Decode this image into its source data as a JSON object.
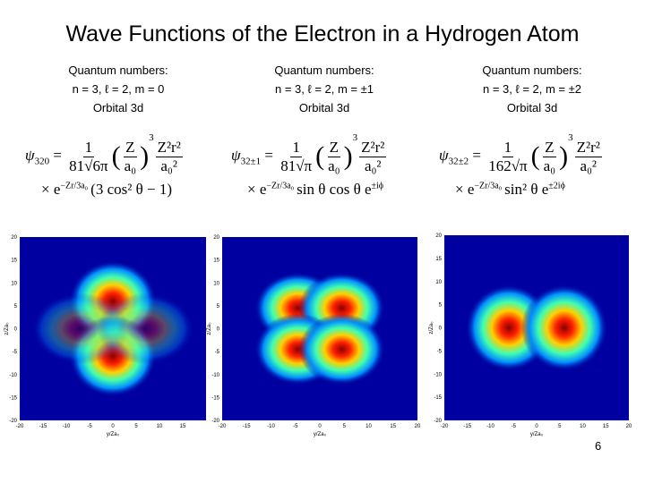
{
  "title": "Wave Functions of the Electron in a Hydrogen Atom",
  "page_number": "6",
  "panels": [
    {
      "header": [
        "Quantum numbers:",
        "n = 3, ℓ = 2, m = 0",
        "Orbital 3d"
      ],
      "equation": {
        "lhs": "ψ",
        "lhs_sub": "320",
        "coef_num": "1",
        "coef_den": "81√6π",
        "ratio_num": "Z",
        "ratio_den": "a₀",
        "power": "3",
        "r_num": "Z²r²",
        "r_den": "a₀²",
        "times": "× e",
        "exp": "−Zr/3a₀",
        "angular": "(3 cos² θ − 1)"
      },
      "plot": {
        "xticks": [
          -20,
          -15,
          -10,
          -5,
          0,
          5,
          10,
          15
        ],
        "yticks": [
          20,
          15,
          10,
          5,
          0,
          -5,
          -10,
          -15,
          -20
        ],
        "xlabel": "y/Za₀",
        "ylabel": "z/Za₀"
      }
    },
    {
      "header": [
        "Quantum numbers:",
        "n = 3, ℓ = 2, m = ±1",
        "Orbital 3d"
      ],
      "equation": {
        "lhs": "ψ",
        "lhs_sub": "32±1",
        "coef_num": "1",
        "coef_den": "81√π",
        "ratio_num": "Z",
        "ratio_den": "a₀",
        "power": "3",
        "r_num": "Z²r²",
        "r_den": "a₀²",
        "times": "× e",
        "exp": "−Zr/3a₀",
        "angular": "sin θ cos θ e",
        "angular_sup": "±iϕ"
      },
      "plot": {
        "xticks": [
          -20,
          -15,
          -10,
          -5,
          0,
          5,
          10,
          15,
          20
        ],
        "yticks": [
          20,
          15,
          10,
          5,
          0,
          -5,
          -10,
          -15,
          -20
        ],
        "xlabel": "y/Za₀",
        "ylabel": "z/Za₀"
      }
    },
    {
      "header": [
        "Quantum numbers:",
        "n = 3, ℓ = 2, m = ±2",
        "Orbital 3d"
      ],
      "equation": {
        "lhs": "ψ",
        "lhs_sub": "32±2",
        "coef_num": "1",
        "coef_den": "162√π",
        "ratio_num": "Z",
        "ratio_den": "a₀",
        "power": "3",
        "r_num": "Z²r²",
        "r_den": "a₀²",
        "times": "× e",
        "exp": "−Zr/3a₀",
        "angular": "sin² θ e",
        "angular_sup": "±2iϕ"
      },
      "plot": {
        "xticks": [
          -20,
          -15,
          -10,
          -5,
          0,
          5,
          10,
          15,
          20
        ],
        "yticks": [
          20,
          15,
          10,
          5,
          0,
          -5,
          -10,
          -15,
          -20
        ],
        "xlabel": "y/Za₀",
        "ylabel": "z/Za₀"
      }
    }
  ]
}
